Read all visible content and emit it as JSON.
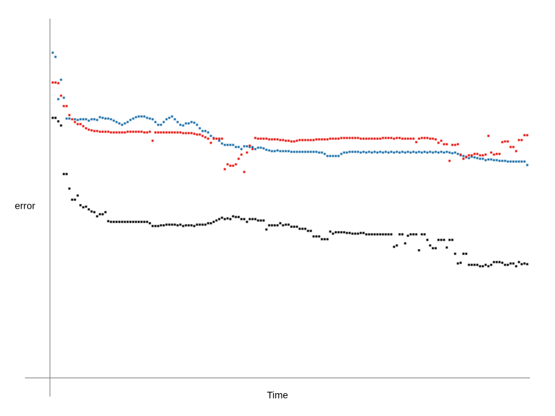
{
  "chart_data": {
    "type": "scatter",
    "x_label": "Time",
    "y_label": "error",
    "xlim": [
      -9,
      173
    ],
    "ylim": [
      -27,
      518
    ],
    "x": [
      1,
      2,
      3,
      4,
      5,
      6,
      7,
      8,
      9,
      10,
      11,
      12,
      13,
      14,
      15,
      16,
      17,
      18,
      19,
      20,
      21,
      22,
      23,
      24,
      25,
      26,
      27,
      28,
      29,
      30,
      31,
      32,
      33,
      34,
      35,
      36,
      37,
      38,
      39,
      40,
      41,
      42,
      43,
      44,
      45,
      46,
      47,
      48,
      49,
      50,
      51,
      52,
      53,
      54,
      55,
      56,
      57,
      58,
      59,
      60,
      61,
      62,
      63,
      64,
      65,
      66,
      67,
      68,
      69,
      70,
      71,
      72,
      73,
      74,
      75,
      76,
      77,
      78,
      79,
      80,
      81,
      82,
      83,
      84,
      85,
      86,
      87,
      88,
      89,
      90,
      91,
      92,
      93,
      94,
      95,
      96,
      97,
      98,
      99,
      100,
      101,
      102,
      103,
      104,
      105,
      106,
      107,
      108,
      109,
      110,
      111,
      112,
      113,
      114,
      115,
      116,
      117,
      118,
      119,
      120,
      121,
      122,
      123,
      124,
      125,
      126,
      127,
      128,
      129,
      130,
      131,
      132,
      133,
      134,
      135,
      136,
      137,
      138,
      139,
      140,
      141,
      142,
      143,
      144,
      145,
      146,
      147,
      148,
      149,
      150,
      151,
      152,
      153,
      154,
      155,
      156,
      157,
      158,
      159,
      160,
      161,
      162,
      163,
      164,
      165,
      166,
      167,
      168,
      169,
      170,
      171,
      172
    ],
    "series": [
      {
        "color": "#000000",
        "values": [
          375,
          375,
          370,
          364,
          294,
          294,
          273,
          257,
          257,
          263,
          249,
          246,
          247,
          243,
          240,
          239,
          233,
          236,
          236,
          239,
          226,
          225,
          225,
          225,
          225,
          225,
          225,
          225,
          225,
          225,
          225,
          225,
          225,
          225,
          225,
          223,
          219,
          219,
          219,
          220,
          220,
          221,
          221,
          221,
          221,
          220,
          221,
          219,
          220,
          220,
          220,
          219,
          221,
          221,
          221,
          221,
          223,
          223,
          225,
          227,
          229,
          231,
          229,
          230,
          229,
          233,
          232,
          232,
          229,
          229,
          225,
          229,
          229,
          229,
          227,
          227,
          227,
          214,
          220,
          220,
          220,
          220,
          223,
          220,
          221,
          221,
          218,
          218,
          218,
          215,
          215,
          215,
          212,
          212,
          204,
          204,
          204,
          200,
          200,
          200,
          211,
          208,
          210,
          210,
          210,
          210,
          209,
          209,
          208,
          208,
          208,
          209,
          209,
          207,
          207,
          207,
          207,
          207,
          207,
          207,
          207,
          207,
          207,
          189,
          191,
          207,
          207,
          194,
          205,
          207,
          207,
          207,
          184,
          207,
          207,
          199,
          191,
          187,
          187,
          199,
          199,
          199,
          188,
          199,
          199,
          179,
          165,
          166,
          179,
          179,
          163,
          163,
          163,
          163,
          161,
          161,
          163,
          161,
          163,
          167,
          167,
          167,
          166,
          163,
          163,
          165,
          165,
          161,
          167,
          164,
          165,
          164
        ]
      },
      {
        "color": "#1a6fa8",
        "values": [
          469,
          463,
          402,
          430,
          404,
          374,
          374,
          373,
          373,
          372,
          373,
          373,
          373,
          371,
          373,
          373,
          372,
          376,
          375,
          374,
          374,
          373,
          371,
          369,
          367,
          365,
          367,
          369,
          372,
          374,
          376,
          377,
          377,
          377,
          375,
          374,
          373,
          369,
          365,
          365,
          369,
          373,
          375,
          377,
          373,
          369,
          365,
          364,
          367,
          367,
          369,
          368,
          365,
          360,
          356,
          356,
          354,
          349,
          346,
          345,
          342,
          338,
          336,
          336,
          336,
          336,
          333,
          333,
          330,
          334,
          334,
          333,
          333,
          330,
          332,
          332,
          331,
          329,
          328,
          327,
          327,
          328,
          327,
          327,
          327,
          327,
          326,
          326,
          326,
          326,
          326,
          326,
          326,
          326,
          326,
          326,
          325,
          325,
          323,
          320,
          320,
          320,
          320,
          320,
          323,
          325,
          325,
          326,
          326,
          326,
          326,
          325,
          326,
          325,
          326,
          325,
          326,
          325,
          326,
          325,
          326,
          325,
          326,
          325,
          326,
          325,
          326,
          325,
          326,
          325,
          326,
          325,
          326,
          325,
          326,
          325,
          326,
          325,
          326,
          325,
          326,
          325,
          326,
          325,
          324,
          325,
          323,
          321,
          320,
          318,
          317,
          319,
          318,
          317,
          316,
          316,
          314,
          315,
          315,
          314,
          314,
          313,
          313,
          313,
          312,
          312,
          312,
          312,
          312,
          312,
          312,
          307
        ]
      },
      {
        "color": "#e8140f",
        "values": [
          426,
          426,
          425,
          407,
          392,
          392,
          379,
          373,
          369,
          366,
          366,
          363,
          360,
          358,
          357,
          356,
          356,
          355,
          355,
          355,
          355,
          354,
          354,
          354,
          354,
          354,
          354,
          355,
          355,
          355,
          355,
          355,
          355,
          354,
          354,
          355,
          342,
          354,
          354,
          354,
          354,
          354,
          354,
          354,
          354,
          354,
          354,
          353,
          353,
          353,
          353,
          352,
          351,
          351,
          349,
          347,
          345,
          339,
          345,
          345,
          345,
          345,
          301,
          308,
          306,
          306,
          308,
          316,
          322,
          297,
          325,
          335,
          330,
          346,
          345,
          345,
          345,
          345,
          344,
          344,
          344,
          344,
          343,
          343,
          342,
          342,
          341,
          341,
          342,
          343,
          343,
          343,
          343,
          343,
          343,
          344,
          344,
          344,
          344,
          344,
          345,
          345,
          345,
          345,
          346,
          346,
          346,
          346,
          346,
          346,
          346,
          345,
          345,
          345,
          345,
          345,
          345,
          345,
          345,
          346,
          346,
          346,
          346,
          345,
          346,
          346,
          345,
          345,
          345,
          345,
          345,
          340,
          345,
          346,
          346,
          346,
          345,
          345,
          344,
          339,
          342,
          337,
          337,
          313,
          336,
          336,
          337,
          322,
          316,
          319,
          321,
          321,
          323,
          323,
          321,
          321,
          322,
          349,
          325,
          322,
          323,
          323,
          340,
          341,
          341,
          333,
          333,
          327,
          343,
          343,
          350,
          350
        ]
      }
    ]
  }
}
